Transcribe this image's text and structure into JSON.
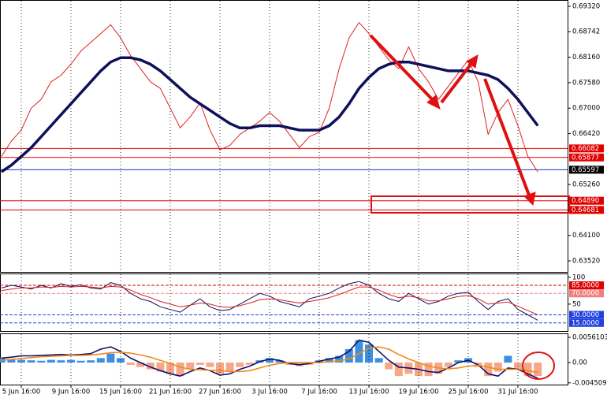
{
  "chart_data": [
    {
      "type": "line",
      "categories": [
        null,
        null,
        "5 Jun 16:00",
        null,
        null,
        null,
        null,
        "9 Jun 16:00",
        null,
        null,
        null,
        null,
        "15 Jun 16:00",
        null,
        null,
        null,
        null,
        "21 Jun 16:00",
        null,
        null,
        null,
        null,
        "27 Jun 16:00",
        null,
        null,
        null,
        null,
        "3 Jul 16:00",
        null,
        null,
        null,
        null,
        "7 Jul 16:00",
        null,
        null,
        null,
        null,
        "13 Jul 16:00",
        null,
        null,
        null,
        null,
        "19 Jul 16:00",
        null,
        null,
        null,
        null,
        "25 Jul 16:00",
        null,
        null,
        null,
        null,
        "31 Jul 16:00",
        null,
        null
      ],
      "series": [
        {
          "color": "#e02020",
          "values": [
            0.659,
            0.6625,
            0.665,
            0.67,
            0.672,
            0.676,
            0.6775,
            0.68,
            0.683,
            0.685,
            0.687,
            0.689,
            0.686,
            0.682,
            0.679,
            0.676,
            0.6745,
            0.67,
            0.6655,
            0.668,
            0.6712,
            0.665,
            0.6605,
            0.6615,
            0.664,
            0.6655,
            0.667,
            0.669,
            0.667,
            0.664,
            0.661,
            0.6635,
            0.6645,
            0.67,
            0.679,
            0.686,
            0.6895,
            0.687,
            0.684,
            0.681,
            0.679,
            0.684,
            0.679,
            0.676,
            0.672,
            0.675,
            0.678,
            0.681,
            0.676,
            0.664,
            0.669,
            0.672,
            0.666,
            0.659,
            0.6555
          ]
        },
        {
          "color": "#10105a",
          "values": [
            0.6555,
            0.657,
            0.659,
            0.661,
            0.6635,
            0.666,
            0.6685,
            0.671,
            0.6735,
            0.676,
            0.6785,
            0.6805,
            0.6815,
            0.6815,
            0.681,
            0.68,
            0.6785,
            0.6765,
            0.6745,
            0.6725,
            0.671,
            0.6695,
            0.668,
            0.6665,
            0.6655,
            0.6655,
            0.666,
            0.666,
            0.666,
            0.6655,
            0.665,
            0.665,
            0.665,
            0.666,
            0.668,
            0.671,
            0.6745,
            0.677,
            0.679,
            0.68,
            0.6805,
            0.6805,
            0.68,
            0.6795,
            0.679,
            0.6785,
            0.6785,
            0.6785,
            0.678,
            0.6775,
            0.6765,
            0.6745,
            0.672,
            0.669,
            0.666
          ]
        }
      ],
      "ylim": [
        0.63269,
        0.69464
      ],
      "yticks": [
        {
          "value": 0.6932,
          "label": "0.69320"
        },
        {
          "value": 0.68742,
          "label": "0.68742"
        },
        {
          "value": 0.6816,
          "label": "0.68160"
        },
        {
          "value": 0.6758,
          "label": "0.67580"
        },
        {
          "value": 0.67,
          "label": "0.67000"
        },
        {
          "value": 0.6642,
          "label": "0.66420"
        },
        {
          "value": 0.6526,
          "label": "0.65260"
        },
        {
          "value": 0.641,
          "label": "0.64100"
        },
        {
          "value": 0.6352,
          "label": "0.63520"
        }
      ],
      "levels": [
        {
          "value": 0.66082,
          "label": "0.66082",
          "color": "#e00000"
        },
        {
          "value": 0.65877,
          "label": "0.65877",
          "color": "#e00000"
        },
        {
          "value": 0.65597,
          "label": "0.65597",
          "color": "#000000"
        },
        {
          "value": 0.6489,
          "label": "0.64890",
          "color": "#e00000"
        },
        {
          "value": 0.64681,
          "label": "0.64681",
          "color": "#e00000"
        }
      ],
      "grid": true
    },
    {
      "type": "line",
      "series": [
        {
          "color": "#10105a",
          "values": [
            80,
            85,
            82,
            78,
            85,
            80,
            88,
            83,
            86,
            80,
            78,
            90,
            85,
            70,
            60,
            55,
            45,
            40,
            35,
            48,
            60,
            45,
            38,
            40,
            50,
            60,
            70,
            65,
            55,
            50,
            45,
            60,
            65,
            70,
            80,
            88,
            92,
            85,
            70,
            60,
            55,
            70,
            60,
            50,
            55,
            65,
            70,
            72,
            55,
            40,
            55,
            60,
            40,
            30,
            20
          ]
        },
        {
          "color": "#d42020",
          "values": [
            75,
            78,
            80,
            80,
            82,
            81,
            83,
            82,
            83,
            82,
            80,
            83,
            82,
            76,
            68,
            62,
            55,
            50,
            45,
            48,
            52,
            50,
            45,
            44,
            47,
            52,
            58,
            60,
            58,
            55,
            52,
            55,
            58,
            62,
            68,
            75,
            82,
            82,
            76,
            68,
            62,
            65,
            62,
            56,
            56,
            60,
            64,
            66,
            60,
            50,
            52,
            54,
            46,
            38,
            30
          ]
        }
      ],
      "ylim": [
        0,
        107
      ],
      "yticks": [
        100,
        50
      ],
      "levels": [
        {
          "value": 85,
          "label": "85.0000",
          "color": "#e00000"
        },
        {
          "value": 70,
          "label": "70.0000",
          "color": "#f08080"
        },
        {
          "value": 30,
          "label": "30.0000",
          "color": "#2040e0"
        },
        {
          "value": 15,
          "label": "15.0000",
          "color": "#2040e0"
        }
      ]
    },
    {
      "type": "bar",
      "values": [
        0.001,
        0.0008,
        0.0006,
        0.0005,
        0.0004,
        0.0006,
        0.0005,
        0.0006,
        0.0004,
        0.0005,
        0.001,
        0.002,
        0.001,
        -0.0005,
        -0.001,
        -0.0015,
        -0.002,
        -0.0025,
        -0.003,
        -0.0015,
        -0.0005,
        -0.001,
        -0.0025,
        -0.002,
        -0.001,
        -0.0005,
        0.0005,
        0.001,
        0.0005,
        -0.0005,
        -0.0008,
        -0.0005,
        0.0005,
        0.001,
        0.0015,
        0.003,
        0.005,
        0.004,
        0.001,
        -0.0015,
        -0.003,
        -0.0025,
        -0.003,
        -0.003,
        -0.0025,
        -0.001,
        0.0005,
        0.001,
        -0.001,
        -0.003,
        -0.002,
        0.0015,
        -0.0015,
        -0.003,
        -0.003
      ],
      "positive_color": "#3d8fe0",
      "negative_color": "#f5a788",
      "series": [
        {
          "color": "#10106a",
          "values": [
            0.001,
            0.0012,
            0.0015,
            0.0015,
            0.0016,
            0.0017,
            0.0018,
            0.0017,
            0.0018,
            0.002,
            0.003,
            0.0035,
            0.0025,
            0.001,
            0,
            -0.001,
            -0.0018,
            -0.0025,
            -0.003,
            -0.002,
            -0.0012,
            -0.0018,
            -0.0028,
            -0.0025,
            -0.0015,
            -0.0008,
            0.0002,
            0.0008,
            0.0005,
            -0.0002,
            -0.0005,
            -0.0002,
            0.0003,
            0.0008,
            0.0012,
            0.0025,
            0.005,
            0.0045,
            0.0025,
            0.0005,
            -0.001,
            -0.0012,
            -0.0015,
            -0.002,
            -0.0022,
            -0.0012,
            0,
            0.0005,
            -0.0005,
            -0.0025,
            -0.003,
            -0.0012,
            -0.0015,
            -0.0025,
            -0.0035
          ]
        },
        {
          "color": "#f08a1a",
          "values": [
            0.0005,
            0.0007,
            0.0009,
            0.0011,
            0.0013,
            0.0014,
            0.0015,
            0.0016,
            0.0016,
            0.0017,
            0.0019,
            0.0022,
            0.0023,
            0.0021,
            0.0017,
            0.0012,
            0.0005,
            -0.0002,
            -0.001,
            -0.0015,
            -0.0016,
            -0.0017,
            -0.0018,
            -0.002,
            -0.002,
            -0.0018,
            -0.0012,
            -0.0006,
            -0.0002,
            0,
            0,
            0,
            0,
            0.0002,
            0.0004,
            0.0008,
            0.002,
            0.0032,
            0.0035,
            0.003,
            0.0018,
            0.0008,
            0,
            -0.0008,
            -0.0012,
            -0.0014,
            -0.0012,
            -0.0008,
            -0.0006,
            -0.001,
            -0.0015,
            -0.0015,
            -0.0015,
            -0.0018,
            -0.0022
          ]
        }
      ],
      "ylim": [
        -0.0049,
        0.0065
      ],
      "yticks": [
        0.0056103,
        {
          "value": 0,
          "label": "0.00"
        },
        -0.004509
      ]
    }
  ]
}
